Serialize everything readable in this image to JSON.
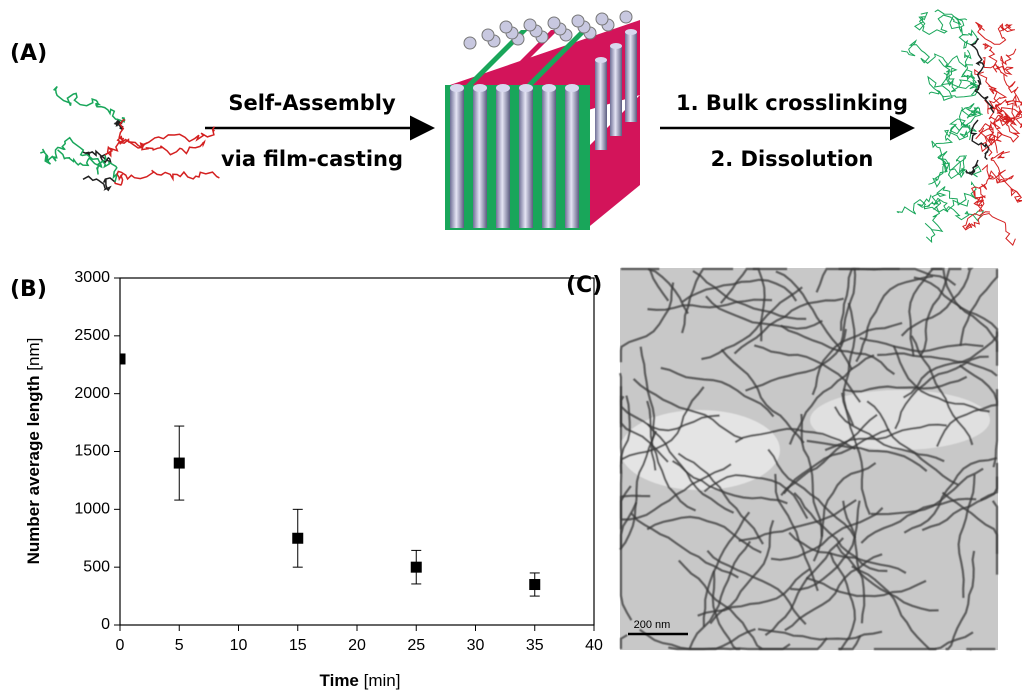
{
  "panels": [
    "(A)",
    "(B)",
    "(C)"
  ],
  "scheme": {
    "step1": [
      "Self-Assembly",
      "via film-casting"
    ],
    "step2": [
      "1. Bulk crosslinking",
      "2. Dissolution"
    ]
  },
  "chart_data": {
    "type": "scatter",
    "x_label": {
      "name": "Time",
      "unit": "[min]"
    },
    "y_label": {
      "name": "Number average length",
      "unit": "[nm]"
    },
    "x": [
      0,
      5,
      15,
      25,
      35
    ],
    "series": [
      {
        "color": "#000000",
        "values": [
          2300,
          1400,
          750,
          500,
          350
        ],
        "errors": [
          null,
          320,
          250,
          145,
          100
        ]
      }
    ],
    "xlim": [
      0,
      40
    ],
    "xticks": [
      0,
      5,
      10,
      15,
      20,
      25,
      30,
      35,
      40
    ],
    "ylim": [
      0,
      3000
    ],
    "yticks": [
      0,
      500,
      1000,
      1500,
      2000,
      2500,
      3000
    ]
  },
  "image": {
    "scale_bar": "200 nm"
  }
}
